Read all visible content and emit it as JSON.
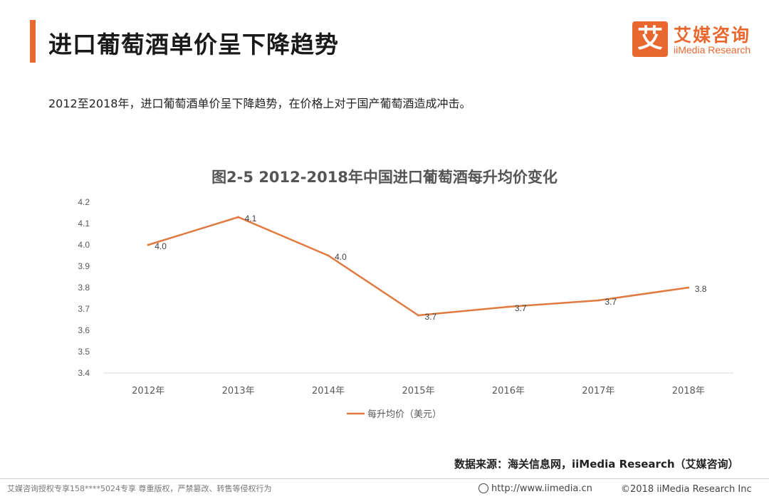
{
  "header": {
    "title": "进口葡萄酒单价呈下降趋势",
    "logo_mark": "艾",
    "logo_cn": "艾媒咨询",
    "logo_en": "iiMedia Research"
  },
  "subtitle": "2012至2018年，进口葡萄酒单价呈下降趋势，在价格上对于国产葡萄酒造成冲击。",
  "chart_data": {
    "type": "line",
    "title": "图2-5 2012-2018年中国进口葡萄酒每升均价变化",
    "categories": [
      "2012年",
      "2013年",
      "2014年",
      "2015年",
      "2016年",
      "2017年",
      "2018年"
    ],
    "series": [
      {
        "name": "每升均价（美元）",
        "values": [
          4.0,
          4.13,
          3.95,
          3.67,
          3.71,
          3.74,
          3.8
        ],
        "labels": [
          "4.0",
          "4.1",
          "4.0",
          "3.7",
          "3.7",
          "3.7",
          "3.8"
        ],
        "color": "#e07a3f"
      }
    ],
    "ylim": [
      3.4,
      4.2
    ],
    "yticks": [
      "3.4",
      "3.5",
      "3.6",
      "3.7",
      "3.8",
      "3.9",
      "4.0",
      "4.1",
      "4.2"
    ],
    "xlabel": "",
    "ylabel": "",
    "grid": false,
    "legend": "bottom"
  },
  "source": "数据来源：海关信息网，iiMedia Research（艾媒咨询）",
  "footer": {
    "left": "艾媒咨询授权专享158****5024专享 尊重版权，严禁篡改、转售等侵权行为",
    "url": "http://www.iimedia.cn",
    "copyright": "©2018  iiMedia Research  Inc"
  }
}
